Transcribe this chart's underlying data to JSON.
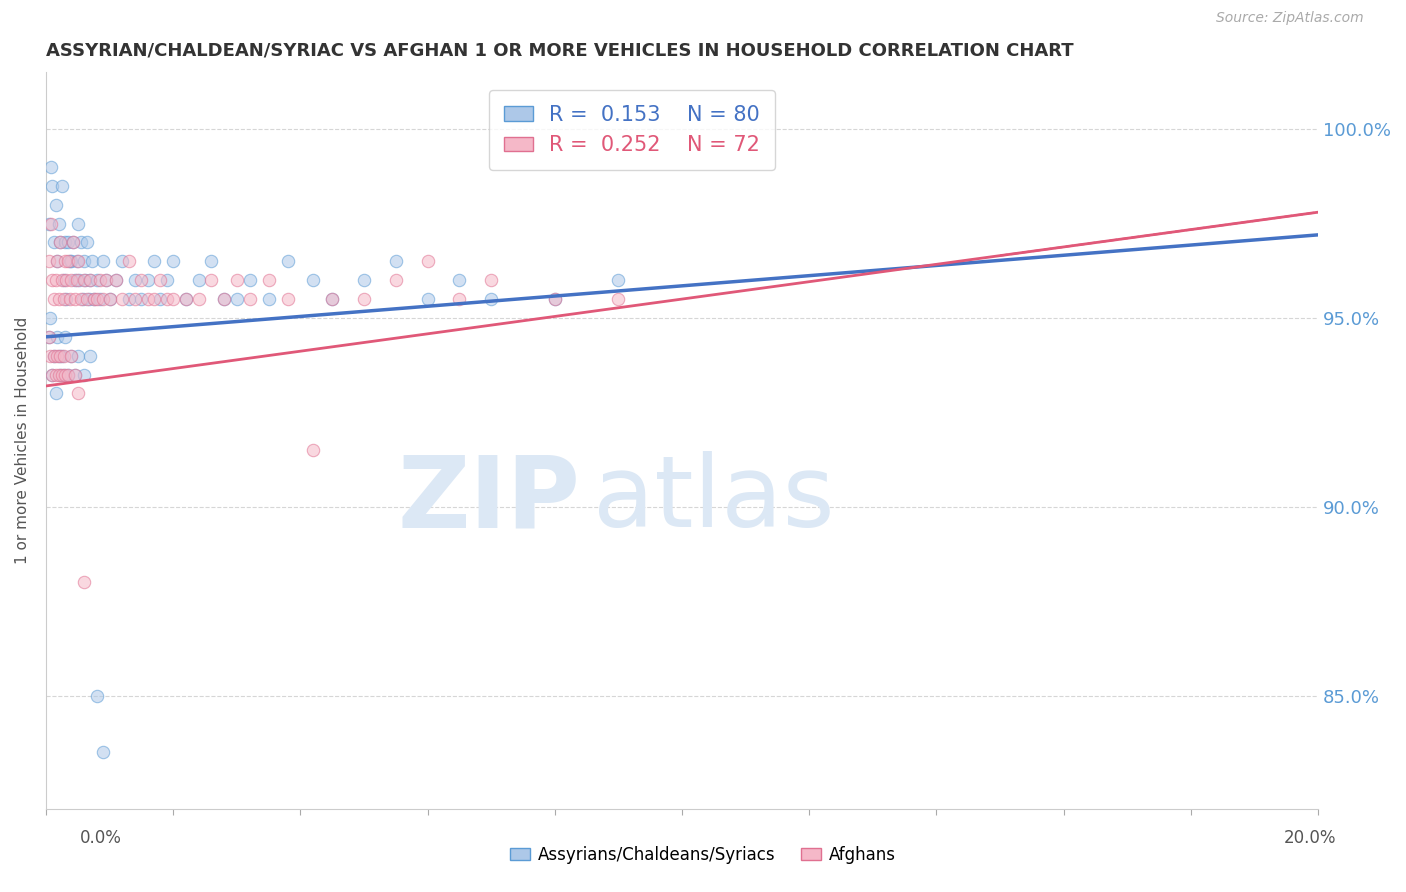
{
  "title": "ASSYRIAN/CHALDEAN/SYRIAC VS AFGHAN 1 OR MORE VEHICLES IN HOUSEHOLD CORRELATION CHART",
  "source": "Source: ZipAtlas.com",
  "ylabel": "1 or more Vehicles in Household",
  "xmin": 0.0,
  "xmax": 20.0,
  "ymin": 82.0,
  "ymax": 101.5,
  "yticks": [
    85.0,
    90.0,
    95.0,
    100.0
  ],
  "ytick_labels": [
    "85.0%",
    "90.0%",
    "95.0%",
    "100.0%"
  ],
  "blue_trend": [
    94.5,
    97.2
  ],
  "pink_trend": [
    93.2,
    97.8
  ],
  "series": [
    {
      "label": "Assyrians/Chaldeans/Syriacs",
      "color": "#adc8e8",
      "edge_color": "#5b9bd5",
      "R": 0.153,
      "N": 80,
      "trend_color": "#4472c4",
      "x": [
        0.05,
        0.08,
        0.1,
        0.12,
        0.15,
        0.18,
        0.2,
        0.22,
        0.25,
        0.28,
        0.3,
        0.32,
        0.35,
        0.38,
        0.4,
        0.42,
        0.45,
        0.48,
        0.5,
        0.52,
        0.55,
        0.58,
        0.6,
        0.62,
        0.65,
        0.68,
        0.7,
        0.72,
        0.75,
        0.8,
        0.85,
        0.9,
        0.95,
        1.0,
        1.1,
        1.2,
        1.3,
        1.4,
        1.5,
        1.6,
        1.7,
        1.8,
        1.9,
        2.0,
        2.2,
        2.4,
        2.6,
        2.8,
        3.0,
        3.2,
        3.5,
        3.8,
        4.2,
        4.5,
        5.0,
        5.5,
        6.0,
        6.5,
        7.0,
        8.0,
        9.0,
        0.05,
        0.07,
        0.09,
        0.12,
        0.15,
        0.18,
        0.2,
        0.22,
        0.25,
        0.28,
        0.3,
        0.35,
        0.4,
        0.45,
        0.5,
        0.6,
        0.7,
        0.8,
        0.9
      ],
      "y": [
        97.5,
        99.0,
        98.5,
        97.0,
        98.0,
        96.5,
        97.5,
        97.0,
        98.5,
        96.0,
        97.0,
        95.5,
        97.0,
        96.5,
        96.5,
        97.0,
        96.0,
        96.5,
        97.5,
        96.0,
        97.0,
        95.5,
        96.5,
        96.0,
        97.0,
        95.5,
        96.0,
        96.5,
        95.5,
        96.0,
        95.5,
        96.5,
        96.0,
        95.5,
        96.0,
        96.5,
        95.5,
        96.0,
        95.5,
        96.0,
        96.5,
        95.5,
        96.0,
        96.5,
        95.5,
        96.0,
        96.5,
        95.5,
        95.5,
        96.0,
        95.5,
        96.5,
        96.0,
        95.5,
        96.0,
        96.5,
        95.5,
        96.0,
        95.5,
        95.5,
        96.0,
        94.5,
        95.0,
        93.5,
        94.0,
        93.0,
        94.5,
        94.0,
        93.5,
        94.0,
        93.5,
        94.5,
        93.5,
        94.0,
        93.5,
        94.0,
        93.5,
        94.0,
        85.0,
        83.5
      ]
    },
    {
      "label": "Afghans",
      "color": "#f5b8c8",
      "edge_color": "#e07090",
      "R": 0.252,
      "N": 72,
      "trend_color": "#e05878",
      "x": [
        0.05,
        0.08,
        0.1,
        0.12,
        0.15,
        0.18,
        0.2,
        0.22,
        0.25,
        0.28,
        0.3,
        0.32,
        0.35,
        0.38,
        0.4,
        0.42,
        0.45,
        0.48,
        0.5,
        0.55,
        0.6,
        0.65,
        0.7,
        0.75,
        0.8,
        0.85,
        0.9,
        0.95,
        1.0,
        1.1,
        1.2,
        1.3,
        1.4,
        1.5,
        1.6,
        1.7,
        1.8,
        1.9,
        2.0,
        2.2,
        2.4,
        2.6,
        2.8,
        3.0,
        3.2,
        3.5,
        3.8,
        4.2,
        4.5,
        5.0,
        5.5,
        6.0,
        6.5,
        7.0,
        8.0,
        9.0,
        0.05,
        0.07,
        0.09,
        0.12,
        0.15,
        0.18,
        0.2,
        0.22,
        0.25,
        0.28,
        0.3,
        0.35,
        0.4,
        0.45,
        0.5,
        0.6
      ],
      "y": [
        96.5,
        97.5,
        96.0,
        95.5,
        96.0,
        96.5,
        95.5,
        97.0,
        96.0,
        95.5,
        96.5,
        96.0,
        96.5,
        95.5,
        96.0,
        97.0,
        95.5,
        96.0,
        96.5,
        95.5,
        96.0,
        95.5,
        96.0,
        95.5,
        95.5,
        96.0,
        95.5,
        96.0,
        95.5,
        96.0,
        95.5,
        96.5,
        95.5,
        96.0,
        95.5,
        95.5,
        96.0,
        95.5,
        95.5,
        95.5,
        95.5,
        96.0,
        95.5,
        96.0,
        95.5,
        96.0,
        95.5,
        91.5,
        95.5,
        95.5,
        96.0,
        96.5,
        95.5,
        96.0,
        95.5,
        95.5,
        94.5,
        94.0,
        93.5,
        94.0,
        93.5,
        94.0,
        93.5,
        94.0,
        93.5,
        94.0,
        93.5,
        93.5,
        94.0,
        93.5,
        93.0,
        88.0
      ]
    }
  ],
  "legend_R_blue": "0.153",
  "legend_N_blue": "80",
  "legend_R_pink": "0.252",
  "legend_N_pink": "72",
  "watermark_text": "ZIP",
  "watermark_text2": "atlas",
  "background_color": "#ffffff",
  "scatter_size": 80,
  "alpha_scatter": 0.55
}
